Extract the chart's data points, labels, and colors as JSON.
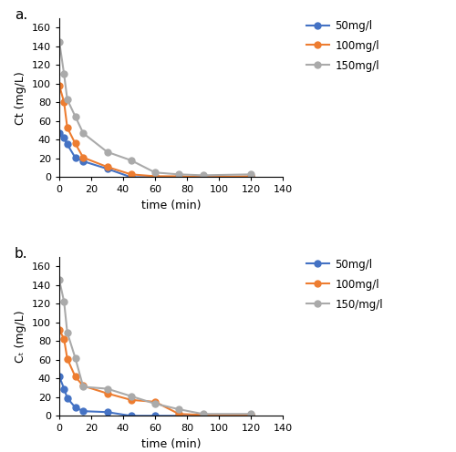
{
  "panel_a": {
    "label": "a.",
    "ylabel": "Ct (mg/L)",
    "xlabel": "time (min)",
    "xlim": [
      0,
      140
    ],
    "ylim": [
      0,
      170
    ],
    "yticks": [
      0,
      20,
      40,
      60,
      80,
      100,
      120,
      140,
      160
    ],
    "xticks": [
      0,
      20,
      40,
      60,
      80,
      100,
      120,
      140
    ],
    "series": [
      {
        "label": "50mg/l",
        "color": "#4472C4",
        "x": [
          0,
          3,
          5,
          10,
          15,
          30,
          45,
          60,
          75,
          90,
          120
        ],
        "y": [
          47,
          42,
          35,
          21,
          17,
          9,
          0,
          0,
          0,
          0,
          0
        ]
      },
      {
        "label": "100mg/l",
        "color": "#ED7D31",
        "x": [
          0,
          3,
          5,
          10,
          15,
          30,
          45,
          60,
          75,
          90,
          120
        ],
        "y": [
          98,
          80,
          53,
          36,
          21,
          11,
          3,
          1,
          1,
          0,
          1
        ]
      },
      {
        "label": "150mg/l",
        "color": "#AAAAAA",
        "x": [
          0,
          3,
          5,
          10,
          15,
          30,
          45,
          60,
          75,
          90,
          120
        ],
        "y": [
          145,
          110,
          83,
          65,
          47,
          27,
          18,
          5,
          3,
          2,
          3
        ]
      }
    ]
  },
  "panel_b": {
    "label": "b.",
    "ylabel": "Ct (mg/L)",
    "xlabel": "time (min)",
    "xlim": [
      0,
      140
    ],
    "ylim": [
      0,
      170
    ],
    "yticks": [
      0,
      20,
      40,
      60,
      80,
      100,
      120,
      140,
      160
    ],
    "xticks": [
      0,
      20,
      40,
      60,
      80,
      100,
      120,
      140
    ],
    "series": [
      {
        "label": "50mg/l",
        "color": "#4472C4",
        "x": [
          0,
          3,
          5,
          10,
          15,
          30,
          45,
          60,
          75,
          90,
          120
        ],
        "y": [
          42,
          29,
          19,
          9,
          5,
          4,
          0,
          0,
          0,
          0,
          0
        ]
      },
      {
        "label": "100mg/l",
        "color": "#ED7D31",
        "x": [
          0,
          3,
          5,
          10,
          15,
          30,
          45,
          60,
          75,
          90,
          120
        ],
        "y": [
          92,
          82,
          61,
          42,
          32,
          24,
          17,
          15,
          2,
          1,
          1
        ]
      },
      {
        "label": "150/mg/l",
        "color": "#AAAAAA",
        "x": [
          0,
          3,
          5,
          10,
          15,
          30,
          45,
          60,
          75,
          90,
          120
        ],
        "y": [
          145,
          122,
          89,
          62,
          31,
          29,
          21,
          13,
          7,
          2,
          2
        ]
      }
    ]
  },
  "legend_labels_a": [
    "50mg/l",
    "100mg/l",
    "150mg/l"
  ],
  "legend_labels_b": [
    "50mg/l",
    "100mg/l",
    "150/mg/l"
  ],
  "background_color": "#FFFFFF",
  "marker": "o",
  "markersize": 5,
  "linewidth": 1.5,
  "ylabel_b": "Cₜ (mg/L)"
}
